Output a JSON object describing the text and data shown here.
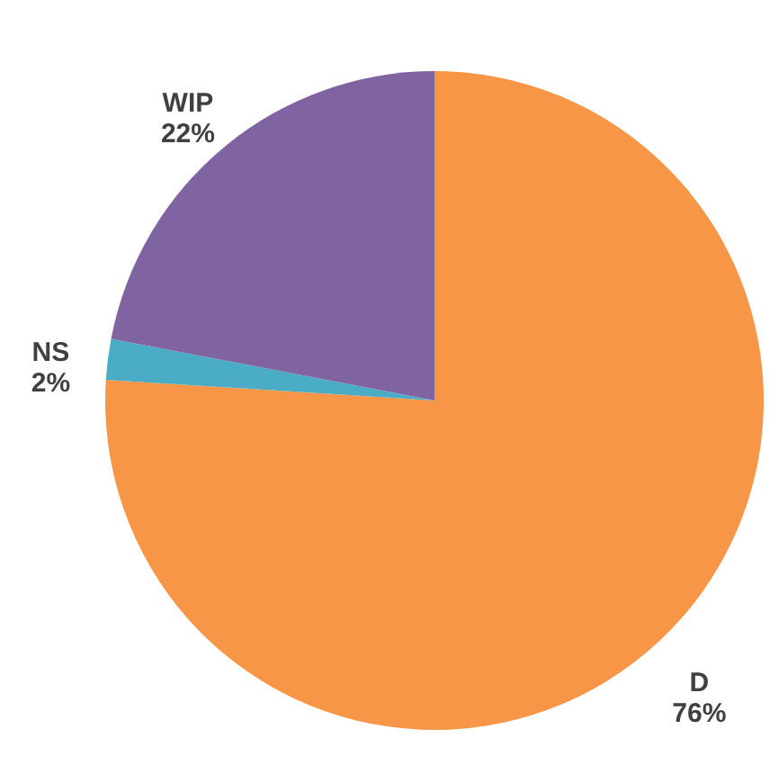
{
  "chart_data": {
    "type": "pie",
    "categories": [
      "D",
      "NS",
      "WIP"
    ],
    "values": [
      76,
      2,
      22
    ],
    "value_labels": [
      "76%",
      "2%",
      "22%"
    ],
    "colors": [
      "#f79646",
      "#4bacc6",
      "#8064a2"
    ],
    "legend": false
  }
}
